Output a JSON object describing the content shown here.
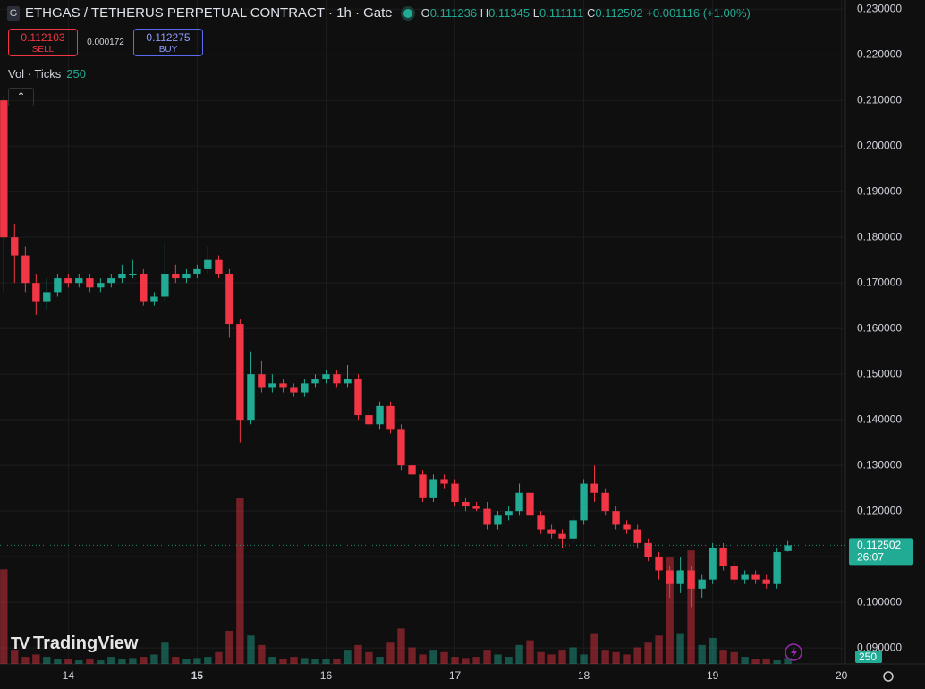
{
  "header": {
    "symbol": "ETHGAS / TETHERUS PERPETUAL CONTRACT · 1h · Gate",
    "logo": "G",
    "o_label": "O",
    "h_label": "H",
    "l_label": "L",
    "c_label": "C",
    "change": "+0.001116 (+1.00%)"
  },
  "trade": {
    "sell_price": "0.112103",
    "sell": "SELL",
    "spread": "0.000172",
    "buy_price": "0.112275",
    "buy": "BUY"
  },
  "indicator": {
    "name": "Vol · Ticks"
  },
  "branding": "TradingView",
  "chart_data": {
    "type": "candlestick",
    "x": [
      13.5,
      13.583,
      13.667,
      13.75,
      13.833,
      13.917,
      14,
      14.083,
      14.167,
      14.25,
      14.333,
      14.417,
      14.5,
      14.583,
      14.667,
      14.75,
      14.833,
      14.917,
      15,
      15.083,
      15.167,
      15.25,
      15.333,
      15.417,
      15.5,
      15.583,
      15.667,
      15.75,
      15.833,
      15.917,
      16,
      16.083,
      16.167,
      16.25,
      16.333,
      16.417,
      16.5,
      16.583,
      16.667,
      16.75,
      16.833,
      16.917,
      17,
      17.083,
      17.167,
      17.25,
      17.333,
      17.417,
      17.5,
      17.583,
      17.667,
      17.75,
      17.833,
      17.917,
      18,
      18.083,
      18.167,
      18.25,
      18.333,
      18.417,
      18.5,
      18.583,
      18.667,
      18.75,
      18.833,
      18.917,
      19,
      19.083,
      19.167,
      19.25,
      19.333,
      19.417,
      19.5,
      19.583
    ],
    "open": [
      0.21,
      0.18,
      0.176,
      0.17,
      0.166,
      0.168,
      0.171,
      0.17,
      0.171,
      0.169,
      0.17,
      0.171,
      0.172,
      0.172,
      0.166,
      0.167,
      0.172,
      0.171,
      0.172,
      0.173,
      0.175,
      0.172,
      0.161,
      0.14,
      0.15,
      0.147,
      0.148,
      0.147,
      0.146,
      0.148,
      0.149,
      0.15,
      0.148,
      0.149,
      0.141,
      0.139,
      0.143,
      0.138,
      0.13,
      0.128,
      0.123,
      0.127,
      0.126,
      0.122,
      0.121,
      0.1205,
      0.117,
      0.119,
      0.12,
      0.124,
      0.119,
      0.116,
      0.115,
      0.114,
      0.118,
      0.126,
      0.124,
      0.12,
      0.117,
      0.116,
      0.113,
      0.11,
      0.107,
      0.104,
      0.107,
      0.103,
      0.105,
      0.112,
      0.108,
      0.105,
      0.106,
      0.105,
      0.104,
      0.111236
    ],
    "high": [
      0.211,
      0.183,
      0.178,
      0.172,
      0.171,
      0.172,
      0.172,
      0.172,
      0.172,
      0.171,
      0.172,
      0.174,
      0.175,
      0.173,
      0.168,
      0.179,
      0.174,
      0.173,
      0.174,
      0.178,
      0.176,
      0.173,
      0.162,
      0.155,
      0.153,
      0.15,
      0.149,
      0.148,
      0.149,
      0.15,
      0.151,
      0.151,
      0.152,
      0.15,
      0.143,
      0.144,
      0.144,
      0.139,
      0.131,
      0.129,
      0.128,
      0.128,
      0.127,
      0.123,
      0.122,
      0.122,
      0.12,
      0.121,
      0.126,
      0.125,
      0.12,
      0.117,
      0.116,
      0.119,
      0.127,
      0.13,
      0.125,
      0.121,
      0.118,
      0.117,
      0.114,
      0.111,
      0.108,
      0.11,
      0.108,
      0.106,
      0.113,
      0.113,
      0.109,
      0.107,
      0.107,
      0.106,
      0.112,
      0.11345
    ],
    "low": [
      0.168,
      0.17,
      0.168,
      0.163,
      0.164,
      0.167,
      0.169,
      0.169,
      0.168,
      0.168,
      0.169,
      0.17,
      0.171,
      0.165,
      0.165,
      0.166,
      0.17,
      0.17,
      0.171,
      0.172,
      0.171,
      0.158,
      0.135,
      0.139,
      0.146,
      0.146,
      0.146,
      0.145,
      0.145,
      0.147,
      0.148,
      0.147,
      0.147,
      0.14,
      0.138,
      0.138,
      0.137,
      0.129,
      0.127,
      0.122,
      0.122,
      0.125,
      0.121,
      0.12,
      0.12,
      0.116,
      0.116,
      0.118,
      0.119,
      0.118,
      0.115,
      0.114,
      0.112,
      0.113,
      0.117,
      0.122,
      0.119,
      0.116,
      0.115,
      0.112,
      0.109,
      0.105,
      0.101,
      0.102,
      0.099,
      0.101,
      0.104,
      0.107,
      0.104,
      0.104,
      0.104,
      0.103,
      0.103,
      0.111111
    ],
    "close": [
      0.18,
      0.176,
      0.17,
      0.166,
      0.168,
      0.171,
      0.17,
      0.171,
      0.169,
      0.17,
      0.171,
      0.172,
      0.172,
      0.166,
      0.167,
      0.172,
      0.171,
      0.172,
      0.173,
      0.175,
      0.172,
      0.161,
      0.14,
      0.15,
      0.147,
      0.148,
      0.147,
      0.146,
      0.148,
      0.149,
      0.15,
      0.148,
      0.149,
      0.141,
      0.139,
      0.143,
      0.138,
      0.13,
      0.128,
      0.123,
      0.127,
      0.126,
      0.122,
      0.121,
      0.1205,
      0.117,
      0.119,
      0.12,
      0.124,
      0.119,
      0.116,
      0.115,
      0.114,
      0.118,
      0.126,
      0.124,
      0.12,
      0.117,
      0.116,
      0.113,
      0.11,
      0.107,
      0.104,
      0.107,
      0.103,
      0.105,
      0.112,
      0.108,
      0.105,
      0.106,
      0.105,
      0.104,
      0.111,
      0.112502
    ],
    "volume": [
      4000,
      600,
      300,
      400,
      300,
      200,
      200,
      150,
      200,
      150,
      300,
      200,
      250,
      300,
      400,
      900,
      300,
      200,
      250,
      300,
      500,
      1400,
      7000,
      1200,
      800,
      300,
      200,
      300,
      250,
      200,
      200,
      200,
      600,
      800,
      500,
      300,
      900,
      1500,
      700,
      400,
      600,
      500,
      300,
      250,
      300,
      600,
      400,
      300,
      800,
      1000,
      500,
      400,
      600,
      700,
      400,
      1300,
      600,
      500,
      400,
      700,
      900,
      1200,
      4500,
      1300,
      4800,
      800,
      1100,
      600,
      500,
      300,
      200,
      200,
      150,
      250
    ],
    "xlim": [
      13.47,
      20.03
    ],
    "xticks": [
      14,
      15,
      16,
      17,
      18,
      19,
      20
    ],
    "ylim": [
      0.0865,
      0.232
    ],
    "yticks": [
      {
        "value": 0.09,
        "label": "0.090000"
      },
      {
        "value": 0.1,
        "label": "0.100000"
      },
      {
        "value": 0.11,
        "label": "0.110000"
      },
      {
        "value": 0.12,
        "label": "0.120000"
      },
      {
        "value": 0.13,
        "label": "0.130000"
      },
      {
        "value": 0.14,
        "label": "0.140000"
      },
      {
        "value": 0.15,
        "label": "0.150000"
      },
      {
        "value": 0.16,
        "label": "0.160000"
      },
      {
        "value": 0.17,
        "label": "0.170000"
      },
      {
        "value": 0.18,
        "label": "0.180000"
      },
      {
        "value": 0.19,
        "label": "0.190000"
      },
      {
        "value": 0.2,
        "label": "0.200000"
      },
      {
        "value": 0.21,
        "label": "0.210000"
      },
      {
        "value": 0.22,
        "label": "0.220000"
      },
      {
        "value": 0.23,
        "label": "0.230000"
      }
    ],
    "grid": true,
    "up_color": "#22ab94",
    "down_color": "#f23645",
    "countdown": "26:07"
  }
}
